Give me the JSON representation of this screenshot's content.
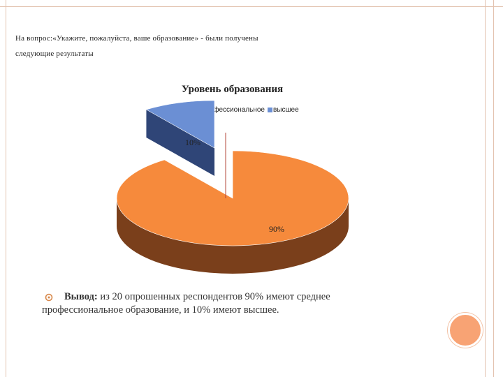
{
  "slide": {
    "heading_part1": "На вопрос:«Укажите, пожалуйста, ваше образование» - были получены",
    "heading_part2": "следующие результаты",
    "conclusion_label": "Вывод:",
    "conclusion_text": " из 20 опрошенных респондентов 90% имеют среднее профессиональное образование, и 10% имеют высшее."
  },
  "colors": {
    "orange": "#f68a3c",
    "orange_side": "#7a3f1b",
    "blue": "#6b8fd4",
    "blue_side": "#2f4577",
    "accent": "#f8a374"
  },
  "chart_data": {
    "type": "pie",
    "title": "Уровень образования",
    "legend_position": "top",
    "categories": [
      "Среднее профессиональное",
      "высшее"
    ],
    "values": [
      90,
      10
    ],
    "data_labels": [
      "90%",
      "10%"
    ]
  }
}
